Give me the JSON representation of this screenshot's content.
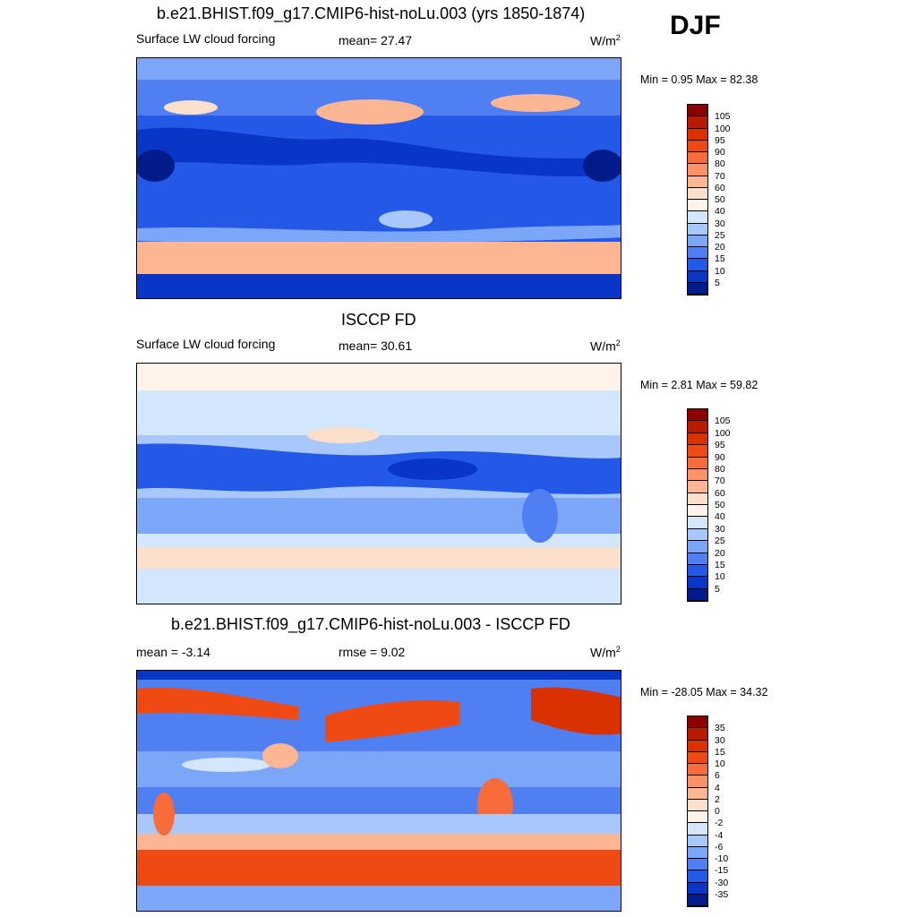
{
  "season": "DJF",
  "panels": [
    {
      "title": "b.e21.BHIST.f09_g17.CMIP6-hist-noLu.003 (yrs 1850-1874)",
      "left_label": "Surface LW cloud forcing",
      "center_label": "mean=  27.47",
      "units": "W/m",
      "units_sup": "2",
      "minmax": "Min =   0.95 Max =  82.38",
      "colorbar": {
        "labels": [
          "105",
          "100",
          "95",
          "90",
          "80",
          "70",
          "60",
          "50",
          "40",
          "30",
          "25",
          "20",
          "15",
          "10",
          "5"
        ],
        "colors": [
          "#8c0000",
          "#b81a00",
          "#d93200",
          "#f04a14",
          "#f86c3c",
          "#fb9268",
          "#fcb694",
          "#fde0cc",
          "#fff2e8",
          "#d4e6fc",
          "#a8c8fb",
          "#7ca6f8",
          "#4f7ff1",
          "#2458e6",
          "#0a36c8",
          "#001b8a"
        ]
      }
    },
    {
      "title": "ISCCP FD",
      "left_label": "Surface LW cloud forcing",
      "center_label": "mean=  30.61",
      "units": "W/m",
      "units_sup": "2",
      "minmax": "Min =   2.81 Max =  59.82",
      "colorbar": {
        "labels": [
          "105",
          "100",
          "95",
          "90",
          "80",
          "70",
          "60",
          "50",
          "40",
          "30",
          "25",
          "20",
          "15",
          "10",
          "5"
        ],
        "colors": [
          "#8c0000",
          "#b81a00",
          "#d93200",
          "#f04a14",
          "#f86c3c",
          "#fb9268",
          "#fcb694",
          "#fde0cc",
          "#fff2e8",
          "#d4e6fc",
          "#a8c8fb",
          "#7ca6f8",
          "#4f7ff1",
          "#2458e6",
          "#0a36c8",
          "#001b8a"
        ]
      }
    },
    {
      "title": "b.e21.BHIST.f09_g17.CMIP6-hist-noLu.003 - ISCCP FD",
      "left_label": "mean =  -3.14",
      "center_label": "rmse =   9.02",
      "units": "W/m",
      "units_sup": "2",
      "minmax": "Min = -28.05 Max =  34.32",
      "colorbar": {
        "labels": [
          "35",
          "30",
          "15",
          "10",
          "6",
          "4",
          "2",
          "0",
          "-2",
          "-4",
          "-6",
          "-10",
          "-15",
          "-30",
          "-35"
        ],
        "colors": [
          "#8c0000",
          "#b81a00",
          "#d93200",
          "#f04a14",
          "#f86c3c",
          "#fb9268",
          "#fcb694",
          "#fde0cc",
          "#fff2e8",
          "#d4e6fc",
          "#a8c8fb",
          "#7ca6f8",
          "#4f7ff1",
          "#2458e6",
          "#0a36c8",
          "#001b8a"
        ]
      }
    }
  ]
}
